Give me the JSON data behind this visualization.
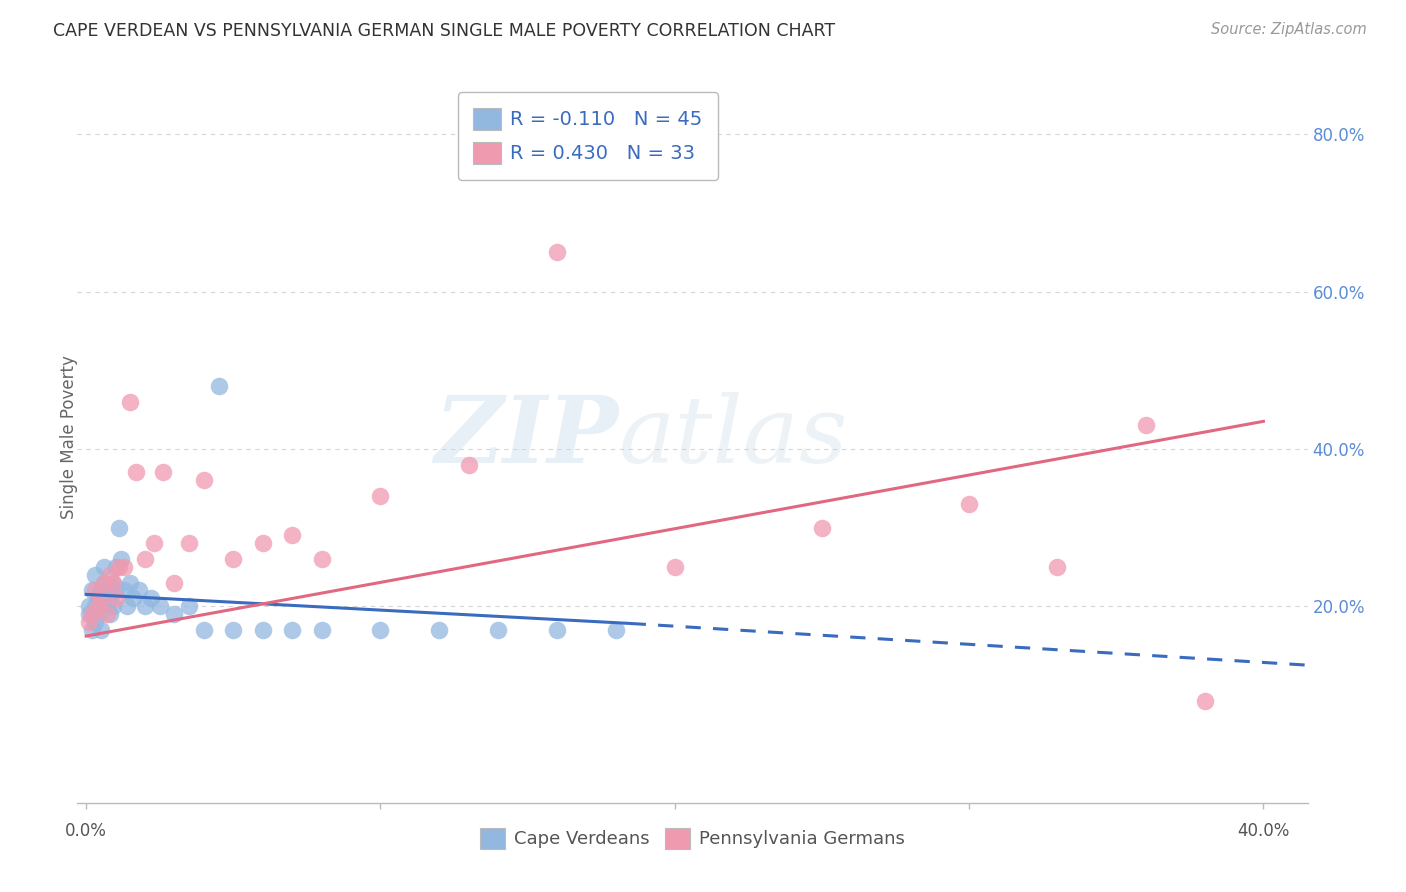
{
  "title": "CAPE VERDEAN VS PENNSYLVANIA GERMAN SINGLE MALE POVERTY CORRELATION CHART",
  "source": "Source: ZipAtlas.com",
  "ylabel": "Single Male Poverty",
  "yticks": [
    0.0,
    0.2,
    0.4,
    0.6,
    0.8
  ],
  "ytick_labels": [
    "",
    "20.0%",
    "40.0%",
    "60.0%",
    "80.0%"
  ],
  "xlim": [
    -0.003,
    0.415
  ],
  "ylim": [
    -0.05,
    0.88
  ],
  "xticks": [
    0.0,
    0.1,
    0.2,
    0.3,
    0.4
  ],
  "watermark": "ZIPatlas",
  "legend_entries": [
    {
      "label": "R = -0.110   N = 45",
      "color": "#adc6e8"
    },
    {
      "label": "R = 0.430   N = 33",
      "color": "#f5b8cb"
    }
  ],
  "legend_bottom": [
    "Cape Verdeans",
    "Pennsylvania Germans"
  ],
  "blue_color": "#92b8e0",
  "pink_color": "#f09ab0",
  "blue_line_color": "#3a6bbf",
  "pink_line_color": "#e06880",
  "background_color": "#ffffff",
  "grid_color": "#cccccc",
  "cape_verdean_x": [
    0.001,
    0.001,
    0.002,
    0.002,
    0.002,
    0.003,
    0.003,
    0.003,
    0.004,
    0.004,
    0.005,
    0.005,
    0.006,
    0.006,
    0.007,
    0.007,
    0.008,
    0.008,
    0.009,
    0.009,
    0.01,
    0.01,
    0.011,
    0.012,
    0.013,
    0.014,
    0.015,
    0.016,
    0.018,
    0.02,
    0.022,
    0.025,
    0.03,
    0.035,
    0.04,
    0.045,
    0.05,
    0.06,
    0.07,
    0.08,
    0.1,
    0.12,
    0.14,
    0.16,
    0.18
  ],
  "cape_verdean_y": [
    0.19,
    0.2,
    0.17,
    0.19,
    0.22,
    0.18,
    0.2,
    0.24,
    0.19,
    0.21,
    0.17,
    0.22,
    0.23,
    0.25,
    0.2,
    0.22,
    0.19,
    0.21,
    0.2,
    0.23,
    0.25,
    0.22,
    0.3,
    0.26,
    0.22,
    0.2,
    0.23,
    0.21,
    0.22,
    0.2,
    0.21,
    0.2,
    0.19,
    0.2,
    0.17,
    0.48,
    0.17,
    0.17,
    0.17,
    0.17,
    0.17,
    0.17,
    0.17,
    0.17,
    0.17
  ],
  "penn_german_x": [
    0.001,
    0.002,
    0.003,
    0.004,
    0.005,
    0.006,
    0.007,
    0.008,
    0.009,
    0.01,
    0.011,
    0.013,
    0.015,
    0.017,
    0.02,
    0.023,
    0.026,
    0.03,
    0.035,
    0.04,
    0.05,
    0.06,
    0.07,
    0.08,
    0.1,
    0.13,
    0.16,
    0.2,
    0.25,
    0.3,
    0.33,
    0.36,
    0.38
  ],
  "penn_german_y": [
    0.18,
    0.19,
    0.22,
    0.2,
    0.21,
    0.23,
    0.19,
    0.24,
    0.23,
    0.21,
    0.25,
    0.25,
    0.46,
    0.37,
    0.26,
    0.28,
    0.37,
    0.23,
    0.28,
    0.36,
    0.26,
    0.28,
    0.29,
    0.26,
    0.34,
    0.38,
    0.65,
    0.25,
    0.3,
    0.33,
    0.25,
    0.43,
    0.08
  ],
  "cv_trend_x0": 0.0,
  "cv_trend_x_solid_end": 0.185,
  "cv_trend_x_dash_end": 0.415,
  "cv_trend_y_start": 0.215,
  "cv_trend_y_solid_end": 0.178,
  "cv_trend_y_dash_end": 0.125,
  "pg_trend_x0": 0.0,
  "pg_trend_x1": 0.4,
  "pg_trend_y0": 0.162,
  "pg_trend_y1": 0.435
}
